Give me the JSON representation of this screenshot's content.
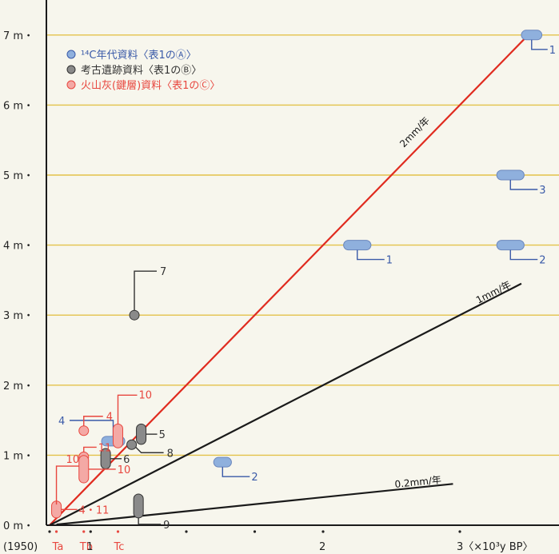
{
  "chart_data": {
    "type": "scatter",
    "x_unit_label": "3〈×10³y BP〉",
    "x_ticks": [
      {
        "value": 0,
        "label": "(1950)",
        "color": "#222222"
      },
      {
        "value": 0.05,
        "label": "Ta",
        "color": "#e8473f"
      },
      {
        "value": 0.25,
        "label": "Tb",
        "color": "#e8473f"
      },
      {
        "value": 0.3,
        "label": "1",
        "color": "#222222"
      },
      {
        "value": 0.5,
        "label": "Tc",
        "color": "#e8473f"
      },
      {
        "value": 1,
        "label": "",
        "color": "#222222"
      },
      {
        "value": 1.5,
        "label": "",
        "color": "#222222"
      },
      {
        "value": 2,
        "label": "2",
        "color": "#222222"
      },
      {
        "value": 3,
        "label": "",
        "color": "#222222"
      }
    ],
    "y_ticks": [
      {
        "value": 0,
        "label": "0 m・"
      },
      {
        "value": 1,
        "label": "1 m・"
      },
      {
        "value": 2,
        "label": "2 m・"
      },
      {
        "value": 3,
        "label": "3 m・"
      },
      {
        "value": 4,
        "label": "4 m・"
      },
      {
        "value": 5,
        "label": "5 m・"
      },
      {
        "value": 6,
        "label": "6 m・"
      },
      {
        "value": 7,
        "label": "7 m・"
      }
    ],
    "xlim": [
      0,
      3.5
    ],
    "ylim": [
      0,
      7.5
    ],
    "grid_y": true,
    "legend_position": "top-left",
    "legend": [
      {
        "label": "¹⁴C年代資料〈表1のⒶ〉",
        "color": "#3a5aa8",
        "marker": "#8fb0dd"
      },
      {
        "label": "考古遺跡資料〈表1のⒷ〉",
        "color": "#333333",
        "marker": "#8a8a8a"
      },
      {
        "label": "火山灰(鍵層)資料〈表1のⒸ〉",
        "color": "#e8473f",
        "marker": "#f4a9a5"
      }
    ],
    "rate_lines": [
      {
        "label": "2mm/年",
        "rate_mm_per_year": 2,
        "x0": 0.0,
        "x1": 3.5,
        "color": "#e02b1f"
      },
      {
        "label": "1mm/年",
        "rate_mm_per_year": 1,
        "x0": 0.0,
        "x1": 3.45,
        "color": "#1a1a1a"
      },
      {
        "label": "0.2mm/年",
        "rate_mm_per_year": 0.2,
        "x0": 0.05,
        "x1": 2.95,
        "color": "#1a1a1a"
      }
    ],
    "A_c14": [
      {
        "label": "1",
        "x_min": 2.15,
        "x_max": 2.35,
        "y": 4.0
      },
      {
        "label": "2",
        "x_min": 3.27,
        "x_max": 3.47,
        "y": 4.0
      },
      {
        "label": "3",
        "x_min": 3.27,
        "x_max": 3.47,
        "y": 5.0
      },
      {
        "label": "1",
        "x_min": 3.45,
        "x_max": 3.6,
        "y": 7.0
      },
      {
        "label": "4",
        "x_min": 0.38,
        "x_max": 0.55,
        "y": 1.2
      },
      {
        "label": "2",
        "x_min": 1.2,
        "x_max": 1.33,
        "y": 0.9
      }
    ],
    "B_arch": [
      {
        "label": "7",
        "x": 0.62,
        "y": 3.0
      },
      {
        "label": "8",
        "x": 0.6,
        "y": 1.15
      },
      {
        "label": "5",
        "x": 0.67,
        "y_min": 1.2,
        "y_max": 1.4
      },
      {
        "label": "6",
        "x": 0.41,
        "y_min": 0.85,
        "y_max": 1.05
      },
      {
        "label": "9",
        "x": 0.65,
        "y_min": 0.15,
        "y_max": 0.4
      }
    ],
    "C_tephra": [
      {
        "label": "4・11",
        "x": 0.05,
        "y_min": 0.15,
        "y_max": 0.3
      },
      {
        "label": "10",
        "x": 0.05,
        "y": 0.25
      },
      {
        "label": "4",
        "x": 0.25,
        "y": 1.35
      },
      {
        "label": "11",
        "x": 0.25,
        "y_min": 0.95,
        "y_max": 1.0
      },
      {
        "label": "10",
        "x": 0.25,
        "y_min": 0.65,
        "y_max": 0.95
      },
      {
        "label": "10",
        "x": 0.5,
        "y_min": 1.15,
        "y_max": 1.4
      }
    ]
  }
}
